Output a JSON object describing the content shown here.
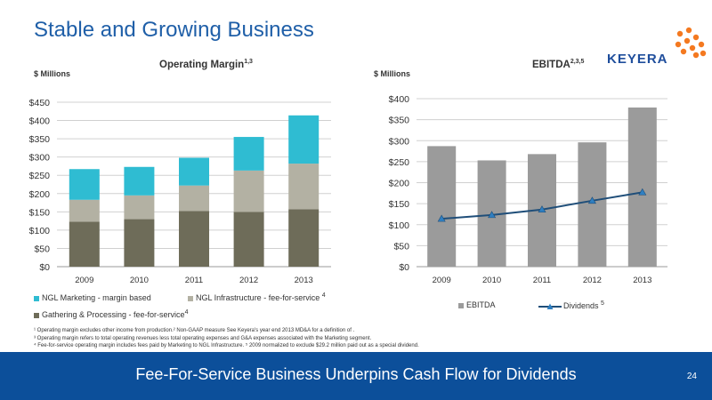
{
  "slide": {
    "title": "Stable and Growing Business",
    "footer": "Fee-For-Service Business Underpins Cash Flow for Dividends",
    "page_number": "24",
    "logo_text": "KEYERA",
    "logo_color": "#f47920",
    "footer_color": "#0c4f9a",
    "title_color": "#1f5fa8"
  },
  "footnotes": [
    "¹ Operating margin excludes other income from production.² Non-GAAP measure See Keyera's year end 2013 MD&A for a definition of .",
    "³ Operating margin refers to total operating revenues less total operating expenses and G&A expenses associated with the Marketing segment.",
    "⁴ Fee-for-service operating margin includes fees paid by Marketing to NGL Infrastructure. ⁵ 2009 normalized to exclude $29.2 million paid out as a special dividend."
  ],
  "chart_data": [
    {
      "type": "bar",
      "stacked": true,
      "title": "Operating Margin",
      "title_sup": "1,3",
      "units_label": "$ Millions",
      "categories": [
        "2009",
        "2010",
        "2011",
        "2012",
        "2013"
      ],
      "ylim": [
        0,
        450
      ],
      "yticks": [
        "$0",
        "$50",
        "$100",
        "$150",
        "$200",
        "$250",
        "$300",
        "$350",
        "$400",
        "$450"
      ],
      "grid": true,
      "legend_position": "bottom",
      "series": [
        {
          "name": "Gathering & Processing - fee-for-service",
          "sup": "4",
          "color": "#6e6c59",
          "values": [
            123,
            130,
            152,
            150,
            157
          ]
        },
        {
          "name": "NGL Infrastructure - fee-for-service",
          "sup": "4",
          "color": "#b3b1a3",
          "values": [
            60,
            65,
            70,
            113,
            125
          ]
        },
        {
          "name": "NGL Marketing - margin based",
          "sup": "",
          "color": "#2fbcd2",
          "values": [
            84,
            78,
            76,
            92,
            132
          ]
        }
      ]
    },
    {
      "type": "bar+line",
      "title": "EBITDA",
      "title_sup": "2,3,5",
      "units_label": "$ Millions",
      "categories": [
        "2009",
        "2010",
        "2011",
        "2012",
        "2013"
      ],
      "ylim": [
        0,
        400
      ],
      "yticks": [
        "$0",
        "$50",
        "$100",
        "$150",
        "$200",
        "$250",
        "$300",
        "$350",
        "$400"
      ],
      "grid": true,
      "legend_position": "bottom",
      "bars": {
        "name": "EBITDA",
        "sup": "",
        "color": "#9b9b9b",
        "values": [
          287,
          253,
          268,
          296,
          379
        ]
      },
      "line": {
        "name": "Dividends",
        "sup": "5",
        "color": "#1f4e79",
        "values": [
          114,
          123,
          136,
          157,
          177
        ]
      }
    }
  ]
}
